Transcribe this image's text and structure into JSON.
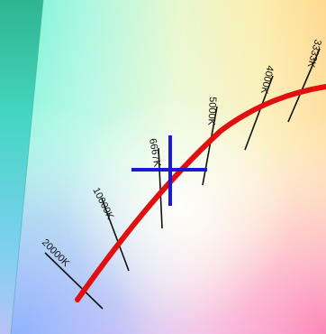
{
  "diagram": {
    "locus_color": "#e01010",
    "marker_color": "#1a1ad6",
    "isotherm_color": "#111111",
    "isotherms": [
      {
        "label": "20000K"
      },
      {
        "label": "10000K"
      },
      {
        "label": "6667K"
      },
      {
        "label": "5000K"
      },
      {
        "label": "4000K"
      },
      {
        "label": "3333K"
      }
    ],
    "marker": {
      "type": "crosshair"
    }
  }
}
